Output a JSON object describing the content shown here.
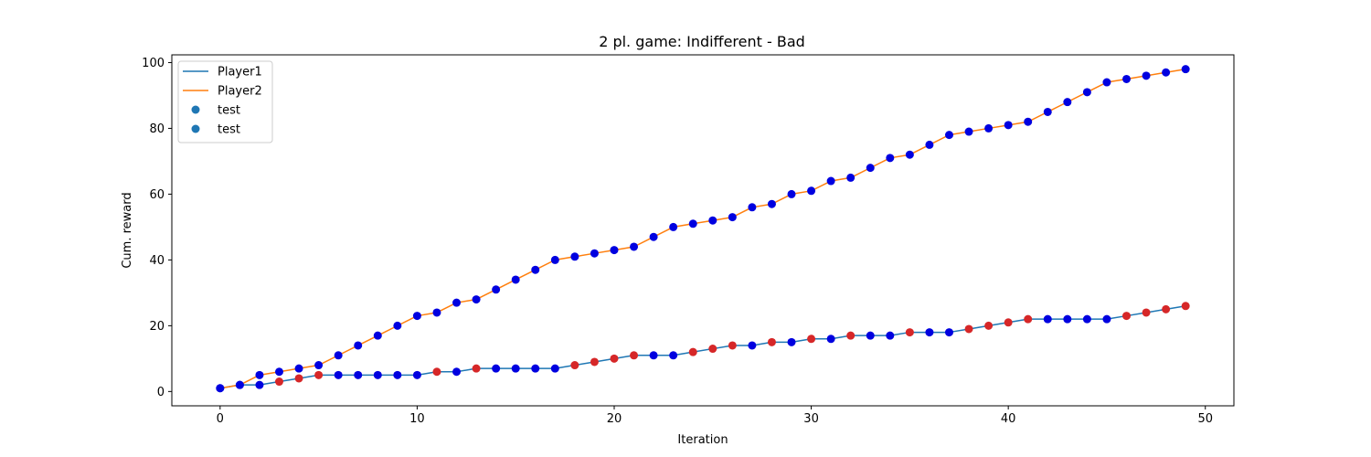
{
  "chart_data": {
    "type": "line",
    "title": "2 pl. game: Indifferent - Bad",
    "xlabel": "Iteration",
    "ylabel": "Cum. reward",
    "xlim": [
      -2.45,
      51.45
    ],
    "ylim": [
      -4.35,
      102.35
    ],
    "xticks": [
      "0",
      "10",
      "20",
      "30",
      "40",
      "50"
    ],
    "yticks": [
      "0",
      "20",
      "40",
      "60",
      "80",
      "100"
    ],
    "grid": false,
    "legend_position": "upper-left",
    "x": [
      0,
      1,
      2,
      3,
      4,
      5,
      6,
      7,
      8,
      9,
      10,
      11,
      12,
      13,
      14,
      15,
      16,
      17,
      18,
      19,
      20,
      21,
      22,
      23,
      24,
      25,
      26,
      27,
      28,
      29,
      30,
      31,
      32,
      33,
      34,
      35,
      36,
      37,
      38,
      39,
      40,
      41,
      42,
      43,
      44,
      45,
      46,
      47,
      48,
      49
    ],
    "series": [
      {
        "name": "Player1",
        "color": "#1f77b4",
        "values": [
          1,
          2,
          2,
          3,
          4,
          5,
          5,
          5,
          5,
          5,
          5,
          6,
          6,
          7,
          7,
          7,
          7,
          7,
          8,
          9,
          10,
          11,
          11,
          11,
          12,
          13,
          14,
          14,
          15,
          15,
          16,
          16,
          17,
          17,
          17,
          18,
          18,
          18,
          19,
          20,
          21,
          22,
          22,
          22,
          22,
          22,
          23,
          24,
          25,
          26
        ],
        "marker_colors": [
          "blue",
          "blue",
          "blue",
          "red",
          "red",
          "red",
          "blue",
          "blue",
          "blue",
          "blue",
          "blue",
          "red",
          "blue",
          "red",
          "blue",
          "blue",
          "blue",
          "blue",
          "red",
          "red",
          "red",
          "red",
          "blue",
          "blue",
          "red",
          "red",
          "red",
          "blue",
          "red",
          "blue",
          "red",
          "blue",
          "red",
          "blue",
          "blue",
          "red",
          "blue",
          "blue",
          "red",
          "red",
          "red",
          "red",
          "blue",
          "blue",
          "blue",
          "blue",
          "red",
          "red",
          "red",
          "red"
        ]
      },
      {
        "name": "Player2",
        "color": "#ff7f0e",
        "values": [
          1,
          2,
          5,
          6,
          7,
          8,
          11,
          14,
          17,
          20,
          23,
          24,
          27,
          28,
          31,
          34,
          37,
          40,
          41,
          42,
          43,
          44,
          47,
          50,
          51,
          52,
          53,
          56,
          57,
          60,
          61,
          64,
          65,
          68,
          71,
          72,
          75,
          78,
          79,
          80,
          81,
          82,
          85,
          88,
          91,
          94,
          95,
          96,
          97,
          98
        ],
        "marker_colors": [
          "blue",
          "blue",
          "blue",
          "blue",
          "blue",
          "blue",
          "blue",
          "blue",
          "blue",
          "blue",
          "blue",
          "blue",
          "blue",
          "blue",
          "blue",
          "blue",
          "blue",
          "blue",
          "blue",
          "blue",
          "blue",
          "blue",
          "blue",
          "blue",
          "blue",
          "blue",
          "blue",
          "blue",
          "blue",
          "blue",
          "blue",
          "blue",
          "blue",
          "blue",
          "blue",
          "blue",
          "blue",
          "blue",
          "blue",
          "blue",
          "blue",
          "blue",
          "blue",
          "blue",
          "blue",
          "blue",
          "blue",
          "blue",
          "blue",
          "blue"
        ]
      }
    ],
    "marker_palette": {
      "red": "#d62728",
      "blue": "#0000e0"
    },
    "legend": [
      {
        "label": "Player1",
        "kind": "line",
        "color": "#1f77b4"
      },
      {
        "label": "Player2",
        "kind": "line",
        "color": "#ff7f0e"
      },
      {
        "label": "test",
        "kind": "marker",
        "color": "#1f77b4"
      },
      {
        "label": "test",
        "kind": "marker",
        "color": "#1f77b4"
      }
    ]
  }
}
